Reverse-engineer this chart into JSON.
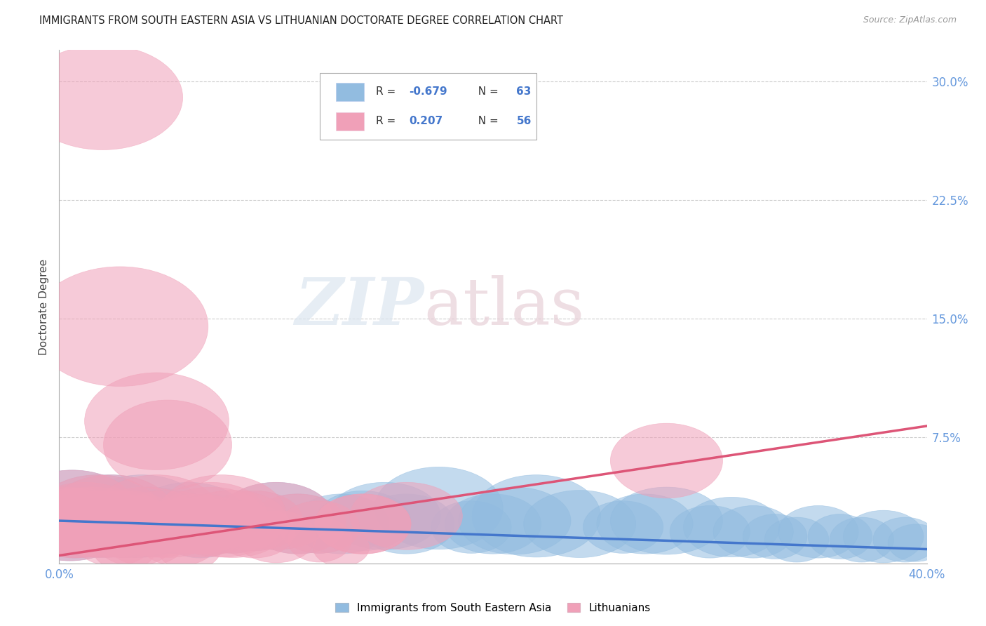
{
  "title": "IMMIGRANTS FROM SOUTH EASTERN ASIA VS LITHUANIAN DOCTORATE DEGREE CORRELATION CHART",
  "source": "Source: ZipAtlas.com",
  "ylabel": "Doctorate Degree",
  "yticks": [
    0.0,
    0.075,
    0.15,
    0.225,
    0.3
  ],
  "ytick_labels": [
    "",
    "7.5%",
    "15.0%",
    "22.5%",
    "30.0%"
  ],
  "xlim": [
    0.0,
    0.4
  ],
  "ylim": [
    -0.005,
    0.32
  ],
  "watermark_zip": "ZIP",
  "watermark_atlas": "atlas",
  "series1_name": "Immigrants from South Eastern Asia",
  "series2_name": "Lithuanians",
  "series1_color": "#92bce0",
  "series2_color": "#f0a0b8",
  "series1_edge_color": "#5588bb",
  "series2_edge_color": "#cc6688",
  "series1_line_color": "#4477cc",
  "series2_line_color": "#dd5577",
  "background_color": "#ffffff",
  "grid_color": "#cccccc",
  "title_color": "#222222",
  "axis_tick_color": "#6699dd",
  "legend_R1": "-0.679",
  "legend_N1": "63",
  "legend_R2": "0.207",
  "legend_N2": "56",
  "series1_x": [
    0.002,
    0.003,
    0.004,
    0.005,
    0.006,
    0.007,
    0.008,
    0.009,
    0.01,
    0.011,
    0.012,
    0.013,
    0.015,
    0.016,
    0.018,
    0.02,
    0.022,
    0.024,
    0.026,
    0.028,
    0.03,
    0.032,
    0.034,
    0.036,
    0.038,
    0.04,
    0.042,
    0.045,
    0.05,
    0.055,
    0.06,
    0.065,
    0.07,
    0.08,
    0.09,
    0.1,
    0.11,
    0.12,
    0.13,
    0.14,
    0.15,
    0.16,
    0.175,
    0.19,
    0.2,
    0.21,
    0.22,
    0.24,
    0.26,
    0.27,
    0.28,
    0.3,
    0.31,
    0.32,
    0.33,
    0.34,
    0.35,
    0.36,
    0.37,
    0.38,
    0.39,
    0.395
  ],
  "series1_y": [
    0.022,
    0.02,
    0.025,
    0.018,
    0.028,
    0.015,
    0.024,
    0.02,
    0.022,
    0.018,
    0.025,
    0.02,
    0.022,
    0.018,
    0.025,
    0.02,
    0.022,
    0.025,
    0.018,
    0.022,
    0.02,
    0.018,
    0.022,
    0.02,
    0.025,
    0.02,
    0.022,
    0.018,
    0.02,
    0.018,
    0.025,
    0.015,
    0.02,
    0.018,
    0.022,
    0.025,
    0.02,
    0.018,
    0.02,
    0.022,
    0.025,
    0.02,
    0.03,
    0.018,
    0.02,
    0.022,
    0.025,
    0.02,
    0.018,
    0.02,
    0.022,
    0.015,
    0.018,
    0.015,
    0.012,
    0.01,
    0.015,
    0.012,
    0.01,
    0.012,
    0.01,
    0.008
  ],
  "series1_w": [
    14,
    12,
    10,
    14,
    16,
    10,
    12,
    14,
    12,
    10,
    14,
    12,
    14,
    10,
    16,
    14,
    12,
    16,
    10,
    12,
    14,
    10,
    12,
    14,
    16,
    12,
    14,
    10,
    12,
    10,
    14,
    10,
    12,
    10,
    12,
    14,
    12,
    10,
    12,
    12,
    14,
    12,
    16,
    10,
    12,
    14,
    16,
    14,
    10,
    12,
    14,
    10,
    12,
    10,
    8,
    8,
    10,
    8,
    8,
    10,
    8,
    7
  ],
  "series1_h": [
    9,
    8,
    7,
    9,
    11,
    7,
    8,
    9,
    8,
    7,
    9,
    8,
    9,
    7,
    11,
    9,
    8,
    11,
    7,
    8,
    9,
    7,
    8,
    9,
    11,
    8,
    9,
    7,
    8,
    7,
    9,
    7,
    8,
    7,
    8,
    9,
    8,
    7,
    8,
    8,
    9,
    8,
    11,
    7,
    8,
    9,
    11,
    9,
    7,
    8,
    9,
    7,
    8,
    7,
    6,
    6,
    7,
    6,
    6,
    7,
    6,
    5
  ],
  "series2_x": [
    0.002,
    0.003,
    0.004,
    0.005,
    0.006,
    0.007,
    0.008,
    0.009,
    0.01,
    0.011,
    0.012,
    0.013,
    0.015,
    0.016,
    0.018,
    0.02,
    0.022,
    0.024,
    0.026,
    0.028,
    0.03,
    0.035,
    0.04,
    0.045,
    0.05,
    0.06,
    0.065,
    0.07,
    0.08,
    0.09,
    0.1,
    0.11,
    0.12,
    0.14,
    0.16,
    0.028,
    0.02,
    0.025,
    0.03,
    0.035,
    0.04,
    0.045,
    0.05,
    0.055,
    0.06,
    0.065,
    0.07,
    0.075,
    0.08,
    0.09,
    0.1,
    0.12,
    0.13,
    0.14,
    0.28
  ],
  "series2_y": [
    0.022,
    0.02,
    0.025,
    0.018,
    0.028,
    0.015,
    0.024,
    0.02,
    0.022,
    0.018,
    0.025,
    0.02,
    0.022,
    0.018,
    0.025,
    0.02,
    0.022,
    0.025,
    0.018,
    0.022,
    0.02,
    0.01,
    0.01,
    0.085,
    0.07,
    0.018,
    0.02,
    0.025,
    0.018,
    0.022,
    0.025,
    0.02,
    0.018,
    0.02,
    0.025,
    0.145,
    0.29,
    0.01,
    0.005,
    0.018,
    0.022,
    0.025,
    0.02,
    0.01,
    0.005,
    0.018,
    0.022,
    0.025,
    0.02,
    0.015,
    0.012,
    0.01,
    0.005,
    0.02,
    0.06
  ],
  "series2_w": [
    14,
    12,
    10,
    14,
    16,
    10,
    12,
    14,
    12,
    10,
    14,
    12,
    14,
    10,
    16,
    14,
    12,
    16,
    10,
    12,
    14,
    10,
    10,
    18,
    16,
    10,
    12,
    14,
    10,
    12,
    14,
    12,
    10,
    12,
    14,
    22,
    20,
    10,
    8,
    12,
    14,
    16,
    14,
    10,
    8,
    12,
    14,
    16,
    14,
    10,
    10,
    8,
    7,
    12,
    14
  ],
  "series2_h": [
    9,
    8,
    7,
    9,
    11,
    7,
    8,
    9,
    8,
    7,
    9,
    8,
    9,
    7,
    11,
    9,
    8,
    11,
    7,
    8,
    9,
    7,
    7,
    13,
    12,
    7,
    8,
    9,
    7,
    8,
    9,
    8,
    7,
    8,
    9,
    16,
    14,
    7,
    6,
    8,
    9,
    11,
    9,
    7,
    6,
    8,
    9,
    11,
    9,
    7,
    7,
    6,
    5,
    8,
    10
  ]
}
